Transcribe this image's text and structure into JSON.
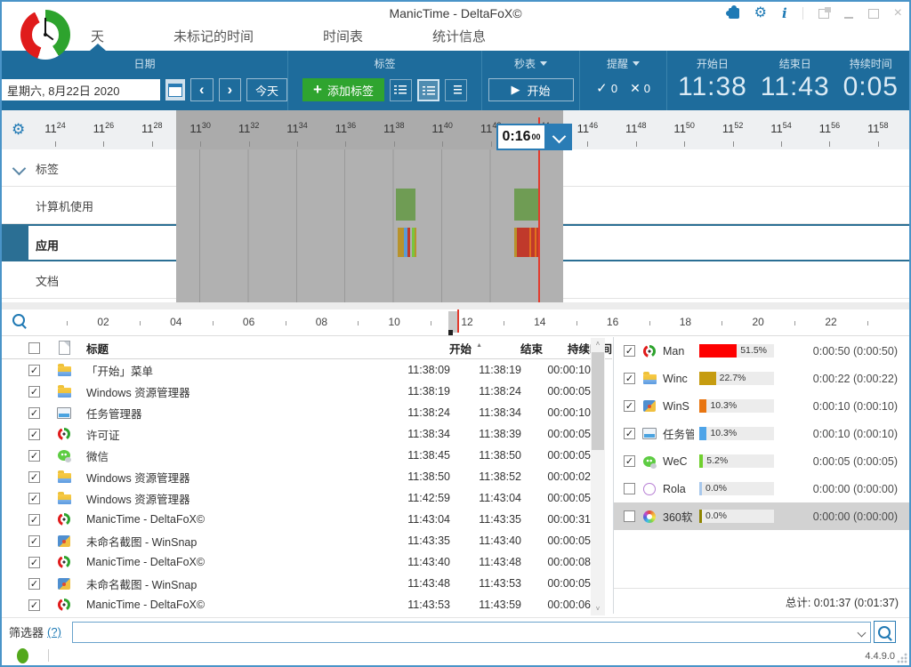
{
  "window": {
    "title": "ManicTime - DeltaFoX©",
    "version": "4.4.9.0"
  },
  "tabs": [
    {
      "label": "天",
      "active": true
    },
    {
      "label": "未标记的时间",
      "active": false
    },
    {
      "label": "时间表",
      "active": false
    },
    {
      "label": "统计信息",
      "active": false
    }
  ],
  "toolbar": {
    "date": {
      "label": "日期",
      "value": "星期六, 8月22日 2020",
      "prev": "‹",
      "next": "›",
      "today": "今天"
    },
    "tags": {
      "label": "标签",
      "add_label": "添加标签",
      "plus": "+"
    },
    "stopwatch": {
      "label": "秒表",
      "start_icon": "▶",
      "start": "开始"
    },
    "reminder": {
      "label": "提醒",
      "ok_count": "0",
      "fail_count": "0"
    },
    "stats": [
      {
        "label": "开始日",
        "value": "11:38"
      },
      {
        "label": "结束日",
        "value": "11:43"
      },
      {
        "label": "持续时间",
        "value": "0:05"
      }
    ]
  },
  "timeline": {
    "ruler_hour": "11",
    "ruler_minutes": [
      "24",
      "26",
      "28",
      "30",
      "32",
      "34",
      "36",
      "38",
      "40",
      "42",
      "44",
      "46",
      "48",
      "50",
      "52",
      "54",
      "56",
      "58"
    ],
    "selection": {
      "start_min": 29,
      "end_min": 45
    },
    "now_min": 44,
    "selector": {
      "value": "0:16",
      "sup": "00"
    },
    "rows": [
      {
        "label": "标签",
        "group": true,
        "selected": false,
        "bars": []
      },
      {
        "label": "计算机使用",
        "group": false,
        "selected": false,
        "bars": [
          {
            "s": 38.08,
            "e": 38.88,
            "c": "#6f9c54"
          },
          {
            "s": 42.97,
            "e": 43.99,
            "c": "#6f9c54"
          }
        ]
      },
      {
        "label": "应用",
        "group": false,
        "selected": true,
        "bars": [
          {
            "s": 38.15,
            "e": 38.4,
            "c": "#b8932c"
          },
          {
            "s": 38.4,
            "e": 38.57,
            "c": "#5b9bd5"
          },
          {
            "s": 38.57,
            "e": 38.66,
            "c": "#c0392b"
          },
          {
            "s": 38.75,
            "e": 38.84,
            "c": "#77c63f"
          },
          {
            "s": 38.84,
            "e": 38.88,
            "c": "#b8932c"
          },
          {
            "s": 42.98,
            "e": 43.07,
            "c": "#b8932c"
          },
          {
            "s": 43.07,
            "e": 43.58,
            "c": "#c0392b"
          },
          {
            "s": 43.58,
            "e": 43.67,
            "c": "#e2701d"
          },
          {
            "s": 43.67,
            "e": 43.8,
            "c": "#c0392b"
          },
          {
            "s": 43.8,
            "e": 43.88,
            "c": "#e2701d"
          },
          {
            "s": 43.88,
            "e": 43.98,
            "c": "#c0392b"
          }
        ]
      },
      {
        "label": "文档",
        "group": false,
        "selected": false,
        "bars": []
      }
    ],
    "hour_labels": [
      "02",
      "04",
      "06",
      "08",
      "10",
      "12",
      "14",
      "16",
      "18",
      "20",
      "22"
    ],
    "hour_selection": {
      "start": 11.48,
      "end": 11.76
    },
    "hour_now": 11.73
  },
  "table": {
    "headers": {
      "title": "标题",
      "start": "开始",
      "end": "结束",
      "duration": "持续时间",
      "sort": "▲"
    },
    "rows": [
      {
        "checked": true,
        "icon": "folder",
        "title": "「开始」菜单",
        "start": "11:38:09",
        "end": "11:38:19",
        "duration": "00:00:10"
      },
      {
        "checked": true,
        "icon": "folder",
        "title": "Windows 资源管理器",
        "start": "11:38:19",
        "end": "11:38:24",
        "duration": "00:00:05"
      },
      {
        "checked": true,
        "icon": "taskmgr",
        "title": "任务管理器",
        "start": "11:38:24",
        "end": "11:38:34",
        "duration": "00:00:10"
      },
      {
        "checked": true,
        "icon": "manictime",
        "title": "许可证",
        "start": "11:38:34",
        "end": "11:38:39",
        "duration": "00:00:05"
      },
      {
        "checked": true,
        "icon": "wechat",
        "title": "微信",
        "start": "11:38:45",
        "end": "11:38:50",
        "duration": "00:00:05"
      },
      {
        "checked": true,
        "icon": "folder",
        "title": "Windows 资源管理器",
        "start": "11:38:50",
        "end": "11:38:52",
        "duration": "00:00:02"
      },
      {
        "checked": true,
        "icon": "folder",
        "title": "Windows 资源管理器",
        "start": "11:42:59",
        "end": "11:43:04",
        "duration": "00:00:05"
      },
      {
        "checked": true,
        "icon": "manictime",
        "title": "ManicTime - DeltaFoX©",
        "start": "11:43:04",
        "end": "11:43:35",
        "duration": "00:00:31"
      },
      {
        "checked": true,
        "icon": "winsnap",
        "title": "未命名截图 - WinSnap",
        "start": "11:43:35",
        "end": "11:43:40",
        "duration": "00:00:05"
      },
      {
        "checked": true,
        "icon": "manictime",
        "title": "ManicTime - DeltaFoX©",
        "start": "11:43:40",
        "end": "11:43:48",
        "duration": "00:00:08"
      },
      {
        "checked": true,
        "icon": "winsnap",
        "title": "未命名截图 - WinSnap",
        "start": "11:43:48",
        "end": "11:43:53",
        "duration": "00:00:05"
      },
      {
        "checked": true,
        "icon": "manictime",
        "title": "ManicTime - DeltaFoX©",
        "start": "11:43:53",
        "end": "11:43:59",
        "duration": "00:00:06"
      }
    ]
  },
  "summary": {
    "rows": [
      {
        "checked": true,
        "selected": false,
        "icon": "manictime",
        "name": "Man",
        "pct": 51.5,
        "pct_label": "51.5%",
        "color": "#fe0000",
        "time": "0:00:50 (0:00:50)"
      },
      {
        "checked": true,
        "selected": false,
        "icon": "folder",
        "name": "Winc",
        "pct": 22.7,
        "pct_label": "22.7%",
        "color": "#c69c10",
        "time": "0:00:22 (0:00:22)"
      },
      {
        "checked": true,
        "selected": false,
        "icon": "winsnap",
        "name": "WinS",
        "pct": 10.3,
        "pct_label": "10.3%",
        "color": "#e87511",
        "time": "0:00:10 (0:00:10)"
      },
      {
        "checked": true,
        "selected": false,
        "icon": "taskmgr",
        "name": "任务管",
        "pct": 10.3,
        "pct_label": "10.3%",
        "color": "#4ea4e8",
        "time": "0:00:10 (0:00:10)"
      },
      {
        "checked": true,
        "selected": false,
        "icon": "wechat",
        "name": "WeC",
        "pct": 5.2,
        "pct_label": "5.2%",
        "color": "#70d02e",
        "time": "0:00:05 (0:00:05)"
      },
      {
        "checked": false,
        "selected": false,
        "icon": "rolan",
        "name": "Rola",
        "pct": 0.0,
        "pct_label": "0.0%",
        "color": "#a8c8ec",
        "time": "0:00:00 (0:00:00)"
      },
      {
        "checked": false,
        "selected": true,
        "icon": "p360",
        "name": "360软",
        "pct": 0.0,
        "pct_label": "0.0%",
        "color": "#8f8400",
        "time": "0:00:00 (0:00:00)"
      }
    ],
    "total": "总计: 0:01:37 (0:01:37)"
  },
  "filter": {
    "label": "筛选器",
    "help": "(?)",
    "value": ""
  }
}
